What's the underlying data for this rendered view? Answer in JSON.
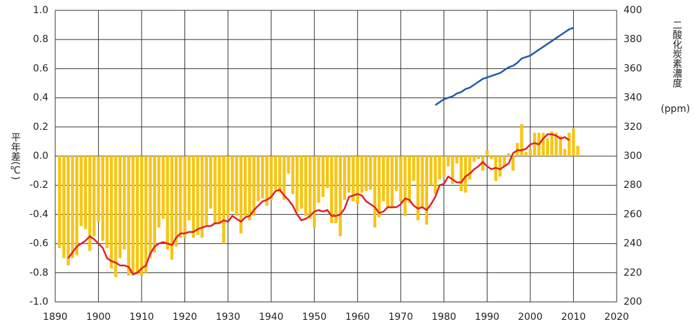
{
  "chart_data": {
    "type": "bar",
    "y_label": "平年差(℃)",
    "y2_label": "二酸化炭素濃度",
    "y2_unit": "(ppm)",
    "xlim": [
      1890,
      2020
    ],
    "xticks": [
      1890,
      1900,
      1910,
      1920,
      1930,
      1940,
      1950,
      1960,
      1970,
      1980,
      1990,
      2000,
      2010,
      2020
    ],
    "ylim": [
      -1.0,
      1.0
    ],
    "yticks": [
      {
        "value": -1.0,
        "label": "-1.0"
      },
      {
        "value": -0.8,
        "label": "-0.8"
      },
      {
        "value": -0.6,
        "label": "-0.6"
      },
      {
        "value": -0.4,
        "label": "-0.4"
      },
      {
        "value": -0.2,
        "label": "-0.2"
      },
      {
        "value": 0,
        "label": "0.0"
      },
      {
        "value": 0.2,
        "label": "0.2"
      },
      {
        "value": 0.4,
        "label": "0.4"
      },
      {
        "value": 0.6,
        "label": "0.6"
      },
      {
        "value": 0.8,
        "label": "0.8"
      },
      {
        "value": 1.0,
        "label": "1.0"
      }
    ],
    "y2lim": [
      200,
      400
    ],
    "y2ticks": [
      200,
      220,
      240,
      260,
      280,
      300,
      320,
      340,
      360,
      380,
      400
    ],
    "grid": true,
    "series": [
      {
        "type": "bar",
        "color": "#f7c512",
        "x": [
          1891,
          1892,
          1893,
          1894,
          1895,
          1896,
          1897,
          1898,
          1899,
          1900,
          1901,
          1902,
          1903,
          1904,
          1905,
          1906,
          1907,
          1908,
          1909,
          1910,
          1911,
          1912,
          1913,
          1914,
          1915,
          1916,
          1917,
          1918,
          1919,
          1920,
          1921,
          1922,
          1923,
          1924,
          1925,
          1926,
          1927,
          1928,
          1929,
          1930,
          1931,
          1932,
          1933,
          1934,
          1935,
          1936,
          1937,
          1938,
          1939,
          1940,
          1941,
          1942,
          1943,
          1944,
          1945,
          1946,
          1947,
          1948,
          1949,
          1950,
          1951,
          1952,
          1953,
          1954,
          1955,
          1956,
          1957,
          1958,
          1959,
          1960,
          1961,
          1962,
          1963,
          1964,
          1965,
          1966,
          1967,
          1968,
          1969,
          1970,
          1971,
          1972,
          1973,
          1974,
          1975,
          1976,
          1977,
          1978,
          1979,
          1980,
          1981,
          1982,
          1983,
          1984,
          1985,
          1986,
          1987,
          1988,
          1989,
          1990,
          1991,
          1992,
          1993,
          1994,
          1995,
          1996,
          1997,
          1998,
          1999,
          2000,
          2001,
          2002,
          2003,
          2004,
          2005,
          2006,
          2007,
          2008,
          2009,
          2010,
          2011
        ],
        "values": [
          -0.63,
          -0.7,
          -0.75,
          -0.7,
          -0.68,
          -0.48,
          -0.5,
          -0.65,
          -0.55,
          -0.45,
          -0.58,
          -0.63,
          -0.77,
          -0.83,
          -0.7,
          -0.64,
          -0.82,
          -0.82,
          -0.81,
          -0.82,
          -0.8,
          -0.7,
          -0.66,
          -0.49,
          -0.43,
          -0.64,
          -0.71,
          -0.62,
          -0.56,
          -0.56,
          -0.44,
          -0.56,
          -0.54,
          -0.56,
          -0.48,
          -0.36,
          -0.47,
          -0.46,
          -0.6,
          -0.42,
          -0.38,
          -0.41,
          -0.53,
          -0.41,
          -0.44,
          -0.41,
          -0.31,
          -0.29,
          -0.34,
          -0.3,
          -0.23,
          -0.25,
          -0.3,
          -0.12,
          -0.26,
          -0.38,
          -0.36,
          -0.41,
          -0.43,
          -0.49,
          -0.32,
          -0.28,
          -0.22,
          -0.46,
          -0.46,
          -0.55,
          -0.3,
          -0.25,
          -0.31,
          -0.33,
          -0.25,
          -0.24,
          -0.23,
          -0.49,
          -0.42,
          -0.31,
          -0.35,
          -0.36,
          -0.24,
          -0.31,
          -0.41,
          -0.32,
          -0.17,
          -0.44,
          -0.36,
          -0.47,
          -0.2,
          -0.26,
          -0.16,
          -0.14,
          -0.07,
          -0.19,
          -0.05,
          -0.24,
          -0.25,
          -0.16,
          -0.04,
          -0.02,
          -0.1,
          0.04,
          -0.02,
          -0.17,
          -0.14,
          -0.07,
          0.02,
          -0.1,
          0.09,
          0.22,
          0.03,
          0.05,
          0.16,
          0.16,
          0.16,
          0.12,
          0.17,
          0.16,
          0.14,
          0.05,
          0.16,
          0.19,
          0.07
        ]
      },
      {
        "type": "line",
        "color": "#e0202a",
        "x": [
          1893,
          1894,
          1895,
          1896,
          1897,
          1898,
          1899,
          1900,
          1901,
          1902,
          1903,
          1904,
          1905,
          1906,
          1907,
          1908,
          1909,
          1910,
          1911,
          1912,
          1913,
          1914,
          1915,
          1916,
          1917,
          1918,
          1919,
          1920,
          1921,
          1922,
          1923,
          1924,
          1925,
          1926,
          1927,
          1928,
          1929,
          1930,
          1931,
          1932,
          1933,
          1934,
          1935,
          1936,
          1937,
          1938,
          1939,
          1940,
          1941,
          1942,
          1943,
          1944,
          1945,
          1946,
          1947,
          1948,
          1949,
          1950,
          1951,
          1952,
          1953,
          1954,
          1955,
          1956,
          1957,
          1958,
          1959,
          1960,
          1961,
          1962,
          1963,
          1964,
          1965,
          1966,
          1967,
          1968,
          1969,
          1970,
          1971,
          1972,
          1973,
          1974,
          1975,
          1976,
          1977,
          1978,
          1979,
          1980,
          1981,
          1982,
          1983,
          1984,
          1985,
          1986,
          1987,
          1988,
          1989,
          1990,
          1991,
          1992,
          1993,
          1994,
          1995,
          1996,
          1997,
          1998,
          1999,
          2000,
          2001,
          2002,
          2003,
          2004,
          2005,
          2006,
          2007,
          2008,
          2009
        ],
        "values": [
          -0.7,
          -0.66,
          -0.62,
          -0.6,
          -0.58,
          -0.55,
          -0.57,
          -0.6,
          -0.63,
          -0.7,
          -0.72,
          -0.73,
          -0.75,
          -0.75,
          -0.76,
          -0.81,
          -0.8,
          -0.77,
          -0.75,
          -0.67,
          -0.62,
          -0.6,
          -0.59,
          -0.6,
          -0.61,
          -0.56,
          -0.53,
          -0.53,
          -0.52,
          -0.52,
          -0.5,
          -0.49,
          -0.48,
          -0.48,
          -0.46,
          -0.46,
          -0.44,
          -0.45,
          -0.41,
          -0.43,
          -0.45,
          -0.42,
          -0.41,
          -0.37,
          -0.34,
          -0.31,
          -0.3,
          -0.28,
          -0.24,
          -0.23,
          -0.27,
          -0.3,
          -0.34,
          -0.4,
          -0.44,
          -0.43,
          -0.41,
          -0.38,
          -0.37,
          -0.38,
          -0.37,
          -0.41,
          -0.41,
          -0.4,
          -0.36,
          -0.28,
          -0.27,
          -0.26,
          -0.27,
          -0.31,
          -0.33,
          -0.35,
          -0.39,
          -0.38,
          -0.35,
          -0.35,
          -0.35,
          -0.33,
          -0.29,
          -0.3,
          -0.34,
          -0.36,
          -0.35,
          -0.37,
          -0.33,
          -0.28,
          -0.2,
          -0.19,
          -0.14,
          -0.16,
          -0.18,
          -0.18,
          -0.14,
          -0.12,
          -0.09,
          -0.07,
          -0.04,
          -0.07,
          -0.09,
          -0.08,
          -0.09,
          -0.07,
          -0.05,
          0.02,
          0.04,
          0.04,
          0.05,
          0.08,
          0.09,
          0.08,
          0.12,
          0.15,
          0.15,
          0.14,
          0.12,
          0.13,
          0.11
        ]
      },
      {
        "type": "line",
        "axis": "y2",
        "color": "#1d5ba8",
        "x": [
          1978,
          1979,
          1980,
          1981,
          1982,
          1983,
          1984,
          1985,
          1986,
          1987,
          1988,
          1989,
          1990,
          1991,
          1992,
          1993,
          1994,
          1995,
          1996,
          1997,
          1998,
          1999,
          2000,
          2001,
          2002,
          2003,
          2004,
          2005,
          2006,
          2007,
          2008,
          2009,
          2010
        ],
        "values": [
          335,
          337,
          339,
          340,
          341,
          343,
          344,
          346,
          347,
          349,
          351,
          353,
          354,
          355,
          356,
          357,
          359,
          361,
          362,
          364,
          367,
          368,
          369,
          371,
          373,
          375,
          377,
          379,
          381,
          383,
          385,
          387,
          388
        ]
      }
    ]
  }
}
